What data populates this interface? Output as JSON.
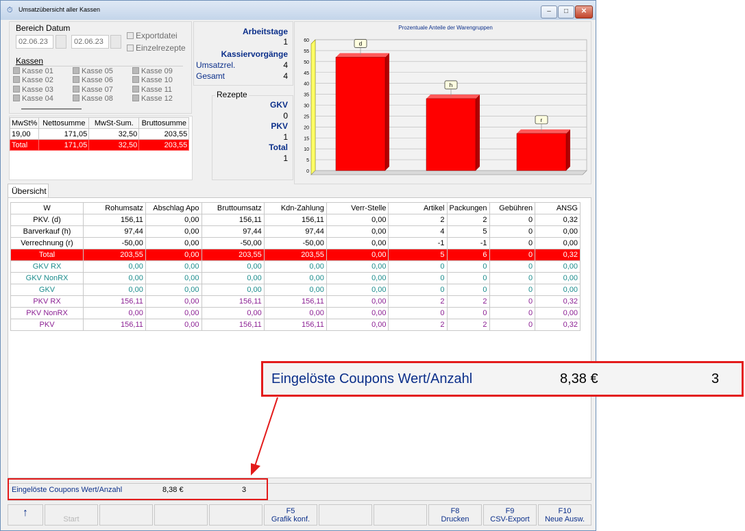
{
  "window": {
    "title": "Umsatzübersicht aller Kassen"
  },
  "bereich": {
    "label": "Bereich Datum",
    "date_from": "02.06.23",
    "date_to": "02.06.23",
    "export_label": "Exportdatei",
    "einzel_label": "Einzelrezepte"
  },
  "kassen": {
    "label": "Kassen",
    "items": [
      "Kasse 01",
      "Kasse 02",
      "Kasse 03",
      "Kasse 04",
      "Kasse 05",
      "Kasse 06",
      "Kasse 07",
      "Kasse 08",
      "Kasse 09",
      "Kasse 10",
      "Kasse 11",
      "Kasse 12"
    ]
  },
  "mwst": {
    "headers": [
      "MwSt%",
      "Nettosumme",
      "MwSt-Sum.",
      "Bruttosumme"
    ],
    "rows": [
      [
        "19,00",
        "171,05",
        "32,50",
        "203,55"
      ]
    ],
    "total": [
      "Total",
      "171,05",
      "32,50",
      "203,55"
    ]
  },
  "stats": {
    "arbeitstage_label": "Arbeitstage",
    "arbeitstage": "1",
    "kassiervorgaenge_label": "Kassiervorgänge",
    "umsatzrel_label": "Umsatzrel.",
    "umsatzrel": "4",
    "gesamt_label": "Gesamt",
    "gesamt": "4"
  },
  "rezepte": {
    "label": "Rezepte",
    "gkv_label": "GKV",
    "gkv": "0",
    "pkv_label": "PKV",
    "pkv": "1",
    "total_label": "Total",
    "total": "1"
  },
  "chart_data": {
    "type": "bar",
    "title": "Prozentuale Anteile der Warengruppen",
    "categories": [
      "d",
      "h",
      "r"
    ],
    "values": [
      52,
      33,
      17
    ],
    "ylim": [
      0,
      60
    ],
    "yticks": [
      "0",
      "5",
      "10",
      "15",
      "20",
      "25",
      "30",
      "35",
      "40",
      "45",
      "50",
      "55",
      "60"
    ],
    "grid": true,
    "colors": {
      "bar": "#ff0000",
      "bar_side": "#b00000",
      "bar_top": "#ff5a5a",
      "axis_wall": "#ffff66"
    }
  },
  "tab": {
    "label": "Übersicht"
  },
  "main_table": {
    "headers": [
      "W",
      "Rohumsatz",
      "Abschlag Apo",
      "Bruttoumsatz",
      "Kdn-Zahlung",
      "Verr-Stelle",
      "Artikel",
      "Packungen",
      "Gebühren",
      "ANSG"
    ],
    "rows": [
      [
        "PKV. (d)",
        "156,11",
        "0,00",
        "156,11",
        "156,11",
        "0,00",
        "2",
        "2",
        "0",
        "0,32"
      ],
      [
        "Barverkauf (h)",
        "97,44",
        "0,00",
        "97,44",
        "97,44",
        "0,00",
        "4",
        "5",
        "0",
        "0,00"
      ],
      [
        "Verrechnung (r)",
        "-50,00",
        "0,00",
        "-50,00",
        "-50,00",
        "0,00",
        "-1",
        "-1",
        "0",
        "0,00"
      ]
    ],
    "total": [
      "Total",
      "203,55",
      "0,00",
      "203,55",
      "203,55",
      "0,00",
      "5",
      "6",
      "0",
      "0,32"
    ],
    "teal_rows": [
      [
        "GKV RX",
        "0,00",
        "0,00",
        "0,00",
        "0,00",
        "0,00",
        "0",
        "0",
        "0",
        "0,00"
      ],
      [
        "GKV NonRX",
        "0,00",
        "0,00",
        "0,00",
        "0,00",
        "0,00",
        "0",
        "0",
        "0",
        "0,00"
      ],
      [
        "GKV",
        "0,00",
        "0,00",
        "0,00",
        "0,00",
        "0,00",
        "0",
        "0",
        "0",
        "0,00"
      ]
    ],
    "purple_rows": [
      [
        "PKV RX",
        "156,11",
        "0,00",
        "156,11",
        "156,11",
        "0,00",
        "2",
        "2",
        "0",
        "0,32"
      ],
      [
        "PKV NonRX",
        "0,00",
        "0,00",
        "0,00",
        "0,00",
        "0,00",
        "0",
        "0",
        "0",
        "0,00"
      ],
      [
        "PKV",
        "156,11",
        "0,00",
        "156,11",
        "156,11",
        "0,00",
        "2",
        "2",
        "0",
        "0,32"
      ]
    ]
  },
  "coupons": {
    "label": "Eingelöste Coupons Wert/Anzahl",
    "value": "8,38 €",
    "count": "3"
  },
  "fkeys": [
    {
      "key": "↑",
      "label": ""
    },
    {
      "key": "",
      "label": "Start"
    },
    {
      "key": "",
      "label": ""
    },
    {
      "key": "",
      "label": ""
    },
    {
      "key": "",
      "label": ""
    },
    {
      "key": "F5",
      "label": "Grafik konf."
    },
    {
      "key": "",
      "label": ""
    },
    {
      "key": "",
      "label": ""
    },
    {
      "key": "F8",
      "label": "Drucken"
    },
    {
      "key": "F9",
      "label": "CSV-Export"
    },
    {
      "key": "F10",
      "label": "Neue Ausw."
    }
  ],
  "colors": {
    "highlight": "#ff0000",
    "annotation": "#e31b1b"
  }
}
